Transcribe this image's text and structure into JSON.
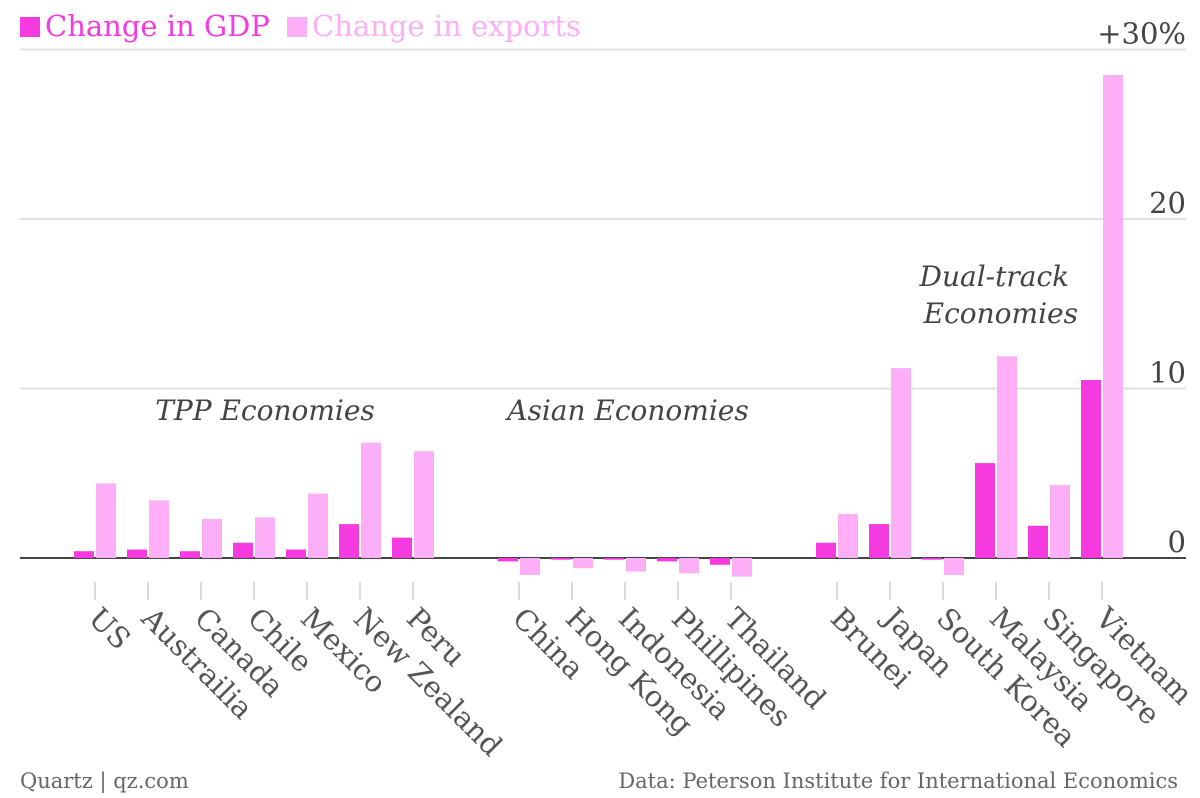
{
  "legend": [
    {
      "label": "Change in GDP",
      "color": "#f53ae0"
    },
    {
      "label": "Change in exports",
      "color": "#fcaef7"
    }
  ],
  "footer": {
    "source": "Quartz | qz.com",
    "data_credit": "Data: Peterson Institute for International Economics"
  },
  "chart_data": {
    "type": "bar",
    "categories": [
      "US",
      "Austrailia",
      "Canada",
      "Chile",
      "Mexico",
      "New Zealand",
      "Peru",
      "China",
      "Hong Kong",
      "Indonesia",
      "Phillipines",
      "Thailand",
      "Brunei",
      "Japan",
      "South Korea",
      "Malaysia",
      "Singapore",
      "Vietnam"
    ],
    "groups": [
      {
        "label": "TPP Economies",
        "categories": [
          "US",
          "Austrailia",
          "Canada",
          "Chile",
          "Mexico",
          "New Zealand",
          "Peru"
        ]
      },
      {
        "label": "Asian Economies",
        "categories": [
          "China",
          "Hong Kong",
          "Indonesia",
          "Phillipines",
          "Thailand"
        ]
      },
      {
        "label": "Dual-track Economies",
        "categories": [
          "Brunei",
          "Japan",
          "South Korea",
          "Malaysia",
          "Singapore",
          "Vietnam"
        ]
      }
    ],
    "series": [
      {
        "name": "Change in GDP",
        "color": "#f53ae0",
        "values": [
          0.4,
          0.5,
          0.4,
          0.9,
          0.5,
          2.0,
          1.2,
          -0.2,
          -0.1,
          -0.1,
          -0.2,
          -0.4,
          0.9,
          2.0,
          -0.1,
          5.6,
          1.9,
          10.5
        ]
      },
      {
        "name": "Change in exports",
        "color": "#fcaef7",
        "values": [
          4.4,
          3.4,
          2.3,
          2.4,
          3.8,
          6.8,
          6.3,
          -1.0,
          -0.6,
          -0.8,
          -0.9,
          -1.1,
          2.6,
          11.2,
          -1.0,
          11.9,
          4.3,
          28.5
        ]
      }
    ],
    "yticks": [
      {
        "value": 0,
        "label": "0"
      },
      {
        "value": 10,
        "label": "10"
      },
      {
        "value": 20,
        "label": "20"
      },
      {
        "value": 30,
        "label": "+30%"
      }
    ],
    "ylim": [
      -2,
      30
    ],
    "grid": true
  }
}
